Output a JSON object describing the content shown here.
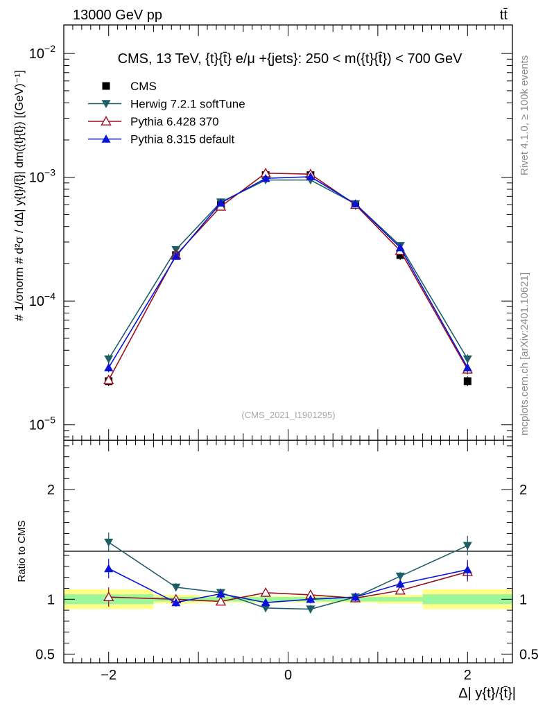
{
  "header": {
    "energy_label": "13000 GeV pp",
    "process_label": "tt̄"
  },
  "side_labels": {
    "rivet": "Rivet 4.1.0, ≥ 100k events",
    "mcplots": "mcplots.cern.ch [arXiv:2401.10621]"
  },
  "watermark": "(CMS_2021_I1901295)",
  "chart_data": [
    {
      "type": "line",
      "scale": "log",
      "title": "CMS, 13 TeV, {t}{t̄} e/μ +{jets}: 250 < m({t}{t̄}) < 700 GeV",
      "ylabel": "# 1/σnorm # d²σ / dΔ| y{t}/{t̄}| dm({t}{t̄}) [(GeV)⁻¹]",
      "xlabel": "Δ| y{t}/{t̄}|",
      "xlim": [
        -2.5,
        2.5
      ],
      "ylim": [
        7.5e-06,
        0.017
      ],
      "y_ticks": [
        {
          "value": 0.01,
          "mantissa": "10",
          "exp": "−2"
        },
        {
          "value": 0.001,
          "mantissa": "10",
          "exp": "−3"
        },
        {
          "value": 0.0001,
          "mantissa": "10",
          "exp": "−4"
        },
        {
          "value": 1e-05,
          "mantissa": "10",
          "exp": "−5"
        }
      ],
      "x": [
        -2.0,
        -1.25,
        -0.75,
        -0.25,
        0.25,
        0.75,
        1.25,
        2.0
      ],
      "x_bin_edges": [
        -2.5,
        -1.5,
        -1.0,
        -0.5,
        0.0,
        0.5,
        1.0,
        1.5,
        2.5
      ],
      "legend_position": "top-left",
      "series": [
        {
          "name": "CMS",
          "color": "#000000",
          "marker": "square",
          "values": [
            2.25e-05,
            0.000235,
            0.0006,
            0.00104,
            0.00104,
            0.0006,
            0.000235,
            2.25e-05
          ]
        },
        {
          "name": "Herwig 7.2.1 softTune",
          "color": "#1e5f67",
          "marker": "triangle-down",
          "values": [
            3.4e-05,
            0.00026,
            0.00063,
            0.00095,
            0.00095,
            0.00061,
            0.00028,
            3.4e-05
          ]
        },
        {
          "name": "Pythia 6.428 370",
          "color": "#9b1020",
          "marker": "triangle-up-open",
          "values": [
            2.3e-05,
            0.000235,
            0.00058,
            0.00108,
            0.00106,
            0.0006,
            0.000255,
            2.8e-05
          ]
        },
        {
          "name": "Pythia 8.315 default",
          "color": "#0a14d8",
          "marker": "triangle-up",
          "values": [
            2.9e-05,
            0.00023,
            0.00062,
            0.00098,
            0.00101,
            0.00061,
            0.00027,
            2.9e-05
          ]
        }
      ]
    },
    {
      "type": "line",
      "ylabel": "Ratio to CMS",
      "xlabel": "Δ| y{t}/{t̄}|",
      "xlim": [
        -2.5,
        2.5
      ],
      "ylim": [
        0.42,
        2.45
      ],
      "y_ticks": [
        {
          "value": 2,
          "label": "2"
        },
        {
          "value": 1,
          "label": "1"
        },
        {
          "value": 0.5,
          "label": "0.5"
        }
      ],
      "x_ticks": [
        {
          "value": -2,
          "label": "−2"
        },
        {
          "value": 0,
          "label": "0"
        },
        {
          "value": 2,
          "label": "2"
        }
      ],
      "x": [
        -2.0,
        -1.25,
        -0.75,
        -0.25,
        0.25,
        0.75,
        1.25,
        2.0
      ],
      "band_edges": [
        -2.5,
        -1.5,
        -1.0,
        -0.5,
        0.0,
        0.5,
        1.0,
        1.5,
        2.5
      ],
      "band_green": [
        0.045,
        0.02,
        0.02,
        0.02,
        0.02,
        0.02,
        0.02,
        0.045
      ],
      "band_yellow": [
        0.09,
        0.04,
        0.03,
        0.03,
        0.03,
        0.03,
        0.04,
        0.09
      ],
      "series": [
        {
          "name": "Herwig 7.2.1 softTune",
          "color": "#1e5f67",
          "marker": "triangle-down",
          "values": [
            1.52,
            1.11,
            1.06,
            0.92,
            0.91,
            1.02,
            1.21,
            1.49
          ]
        },
        {
          "name": "Pythia 6.428 370",
          "color": "#9b1020",
          "marker": "triangle-up-open",
          "values": [
            1.02,
            1.0,
            0.98,
            1.06,
            1.04,
            1.01,
            1.08,
            1.25
          ]
        },
        {
          "name": "Pythia 8.315 default",
          "color": "#0a14d8",
          "marker": "triangle-up",
          "values": [
            1.28,
            0.97,
            1.05,
            0.97,
            1.0,
            1.02,
            1.14,
            1.27
          ]
        }
      ]
    }
  ]
}
